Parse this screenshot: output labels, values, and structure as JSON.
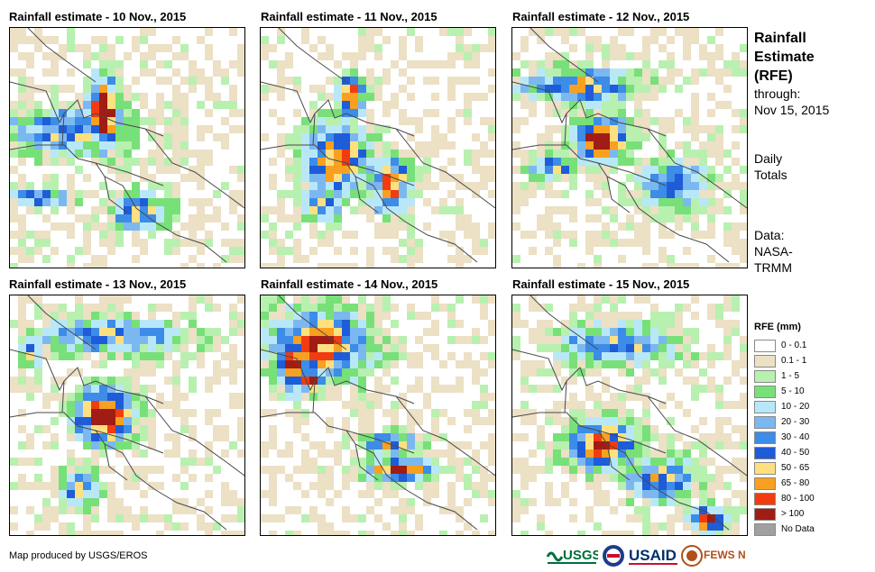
{
  "panels": [
    {
      "title": "Rainfall estimate - 10 Nov., 2015"
    },
    {
      "title": "Rainfall estimate - 11 Nov., 2015"
    },
    {
      "title": "Rainfall estimate - 12 Nov., 2015"
    },
    {
      "title": "Rainfall estimate - 13 Nov., 2015"
    },
    {
      "title": "Rainfall estimate - 14 Nov., 2015"
    },
    {
      "title": "Rainfall estimate - 15 Nov., 2015"
    }
  ],
  "side": {
    "title_line1": "Rainfall",
    "title_line2": "Estimate",
    "title_line3": "(RFE)",
    "through_label": "through:",
    "through_date": "Nov 15, 2015",
    "totals_line1": "Daily",
    "totals_line2": "Totals",
    "data_line1": "Data:",
    "data_line2": "NASA-",
    "data_line3": "TRMM"
  },
  "legend": {
    "title": "RFE (mm)",
    "items": [
      {
        "label": "0 - 0.1",
        "color": "#ffffff"
      },
      {
        "label": "0.1 - 1",
        "color": "#ece0c5"
      },
      {
        "label": "1 - 5",
        "color": "#b8f0b0"
      },
      {
        "label": "5 - 10",
        "color": "#78e078"
      },
      {
        "label": "10 - 20",
        "color": "#b8e8f8"
      },
      {
        "label": "20 - 30",
        "color": "#7cb8f0"
      },
      {
        "label": "30 - 40",
        "color": "#3c8ce8"
      },
      {
        "label": "40 - 50",
        "color": "#1e5cd8"
      },
      {
        "label": "50 - 65",
        "color": "#ffe080"
      },
      {
        "label": "65 - 80",
        "color": "#f8a020"
      },
      {
        "label": "80 - 100",
        "color": "#f03c10"
      },
      {
        "label": "> 100",
        "color": "#a01c14"
      },
      {
        "label": "No Data",
        "color": "#a0a0a0"
      }
    ]
  },
  "credit": "Map produced by USGS/EROS",
  "logos": [
    "usgs-logo",
    "ukaid-logo",
    "usaid-logo",
    "fews-net-logo"
  ]
}
